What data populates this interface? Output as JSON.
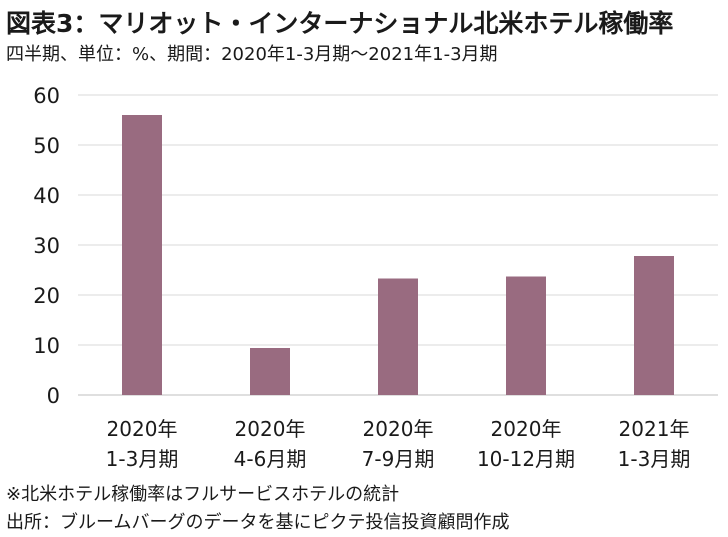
{
  "header": {
    "title": "図表3：マリオット・インターナショナル北米ホテル稼働率",
    "subtitle": "四半期、単位：%、期間：2020年1-3月期～2021年1-3月期"
  },
  "footnotes": {
    "note": "※北米ホテル稼働率はフルサービスホテルの統計",
    "source": "出所：ブルームバーグのデータを基にピクテ投信投資顧問作成"
  },
  "chart_data": {
    "type": "bar",
    "title": "図表3：マリオット・インターナショナル北米ホテル稼働率",
    "subtitle": "四半期、単位：%、期間：2020年1-3月期～2021年1-3月期",
    "categories": [
      [
        "2020年",
        "1-3月期"
      ],
      [
        "2020年",
        "4-6月期"
      ],
      [
        "2020年",
        "7-9月期"
      ],
      [
        "2020年",
        "10-12月期"
      ],
      [
        "2021年",
        "1-3月期"
      ]
    ],
    "values": [
      56,
      9.4,
      23.3,
      23.7,
      27.8
    ],
    "ylim": [
      0,
      60
    ],
    "yticks": [
      0,
      10,
      20,
      30,
      40,
      50,
      60
    ],
    "grid": true,
    "legend": "none",
    "colors": {
      "bar": "#996b80",
      "grid": "#d9d9d9",
      "axis": "#bfbfbf"
    }
  }
}
